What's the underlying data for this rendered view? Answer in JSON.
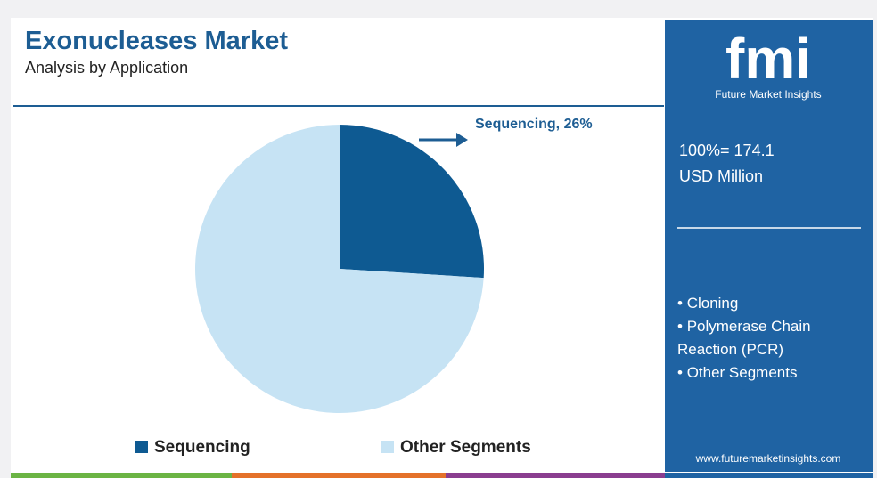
{
  "chart_data": {
    "type": "pie",
    "title": "Exonucleases Market",
    "subtitle": "Analysis by Application",
    "categories": [
      "Sequencing",
      "Other Segments"
    ],
    "values": [
      26,
      74
    ],
    "value_labels": [
      "Sequencing, 26%",
      null
    ],
    "colors": [
      "#0e5a92",
      "#c6e3f4"
    ],
    "legend": "bottom"
  },
  "panel": {
    "logo": "fmi",
    "brand": "Future Market Insights",
    "total_label": "100%= 174.1",
    "unit": "USD Million",
    "segments_list": [
      "Cloning",
      "Polymerase Chain Reaction (PCR)",
      "Other Segments"
    ],
    "website": "www.futuremarketinsights.com"
  }
}
